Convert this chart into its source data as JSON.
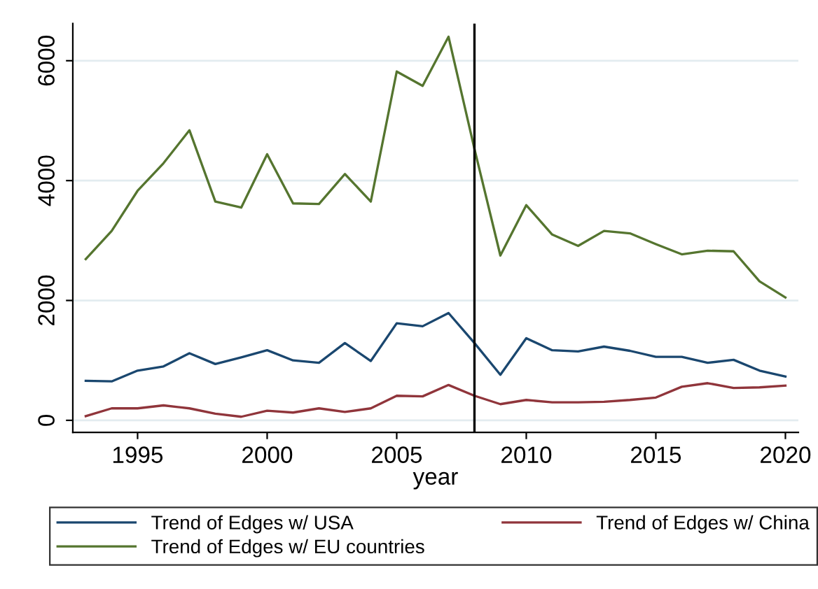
{
  "chart_data": {
    "type": "line",
    "xlabel": "year",
    "x": [
      1993,
      1994,
      1995,
      1996,
      1997,
      1998,
      1999,
      2000,
      2001,
      2002,
      2003,
      2004,
      2005,
      2006,
      2007,
      2008,
      2009,
      2010,
      2011,
      2012,
      2013,
      2014,
      2015,
      2016,
      2017,
      2018,
      2019,
      2020
    ],
    "series": [
      {
        "name": "Trend of Edges w/ USA",
        "color": "#1a476f",
        "values": [
          660,
          650,
          830,
          900,
          1120,
          940,
          1050,
          1170,
          1000,
          960,
          1290,
          990,
          1620,
          1570,
          1790,
          1290,
          760,
          1370,
          1170,
          1150,
          1230,
          1160,
          1060,
          1060,
          960,
          1010,
          830,
          730
        ]
      },
      {
        "name": "Trend of Edges w/ China",
        "color": "#90353b",
        "values": [
          70,
          200,
          200,
          250,
          200,
          110,
          60,
          160,
          130,
          200,
          140,
          200,
          410,
          400,
          590,
          410,
          270,
          340,
          300,
          300,
          310,
          340,
          380,
          560,
          620,
          540,
          550,
          580
        ]
      },
      {
        "name": "Trend of Edges w/ EU countries",
        "color": "#55752f",
        "values": [
          2690,
          3160,
          3830,
          4290,
          4840,
          3650,
          3550,
          4440,
          3620,
          3610,
          4110,
          3650,
          5820,
          5580,
          6400,
          4530,
          2750,
          3590,
          3100,
          2910,
          3160,
          3120,
          2940,
          2770,
          2830,
          2820,
          2320,
          2050
        ]
      }
    ],
    "xlim": [
      1992.5,
      2020.5
    ],
    "xticks": [
      1995,
      2000,
      2005,
      2010,
      2015,
      2020
    ],
    "ylim": [
      -200,
      6620
    ],
    "yticks": [
      0,
      2000,
      4000,
      6000
    ],
    "ref_lines": [
      {
        "axis": "x",
        "value": 2008,
        "color": "#000000"
      }
    ],
    "grid": "y",
    "legend": "bottom"
  }
}
